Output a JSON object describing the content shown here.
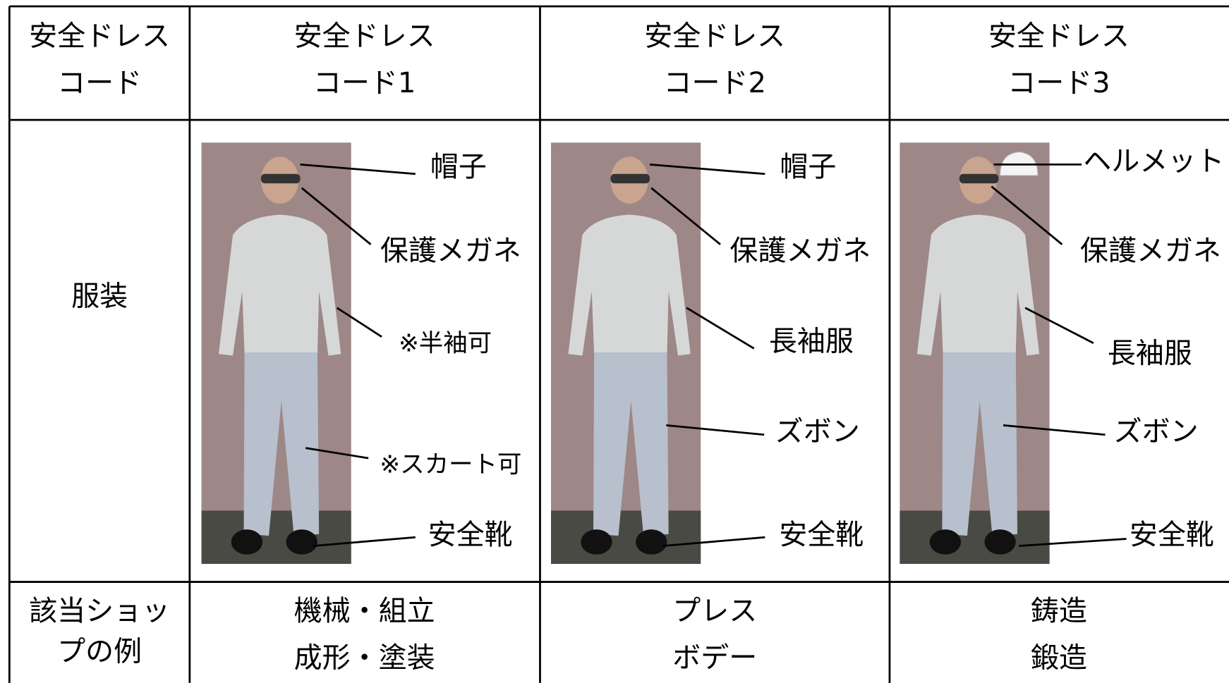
{
  "table": {
    "header": [
      [
        "安全ドレス",
        "コード"
      ],
      [
        "安全ドレス",
        "コード1"
      ],
      [
        "安全ドレス",
        "コード2"
      ],
      [
        "安全ドレス",
        "コード3"
      ]
    ],
    "rows": [
      {
        "label": [
          "服装"
        ],
        "cells": [
          [
            "帽子",
            "保護メガネ",
            "※半袖可",
            "※スカート可",
            "安全靴"
          ],
          [
            "帽子",
            "保護メガネ",
            "長袖服",
            "ズボン",
            "安全靴"
          ],
          [
            "ヘルメット",
            "保護メガネ",
            "長袖服",
            "ズボン",
            "安全靴"
          ]
        ]
      },
      {
        "label": [
          "該当ショッ",
          "プの例"
        ],
        "cells": [
          [
            "機械・組立",
            "成形・塗装"
          ],
          [
            "プレス",
            "ボデー"
          ],
          [
            "鋳造",
            "鍛造"
          ]
        ]
      }
    ]
  }
}
